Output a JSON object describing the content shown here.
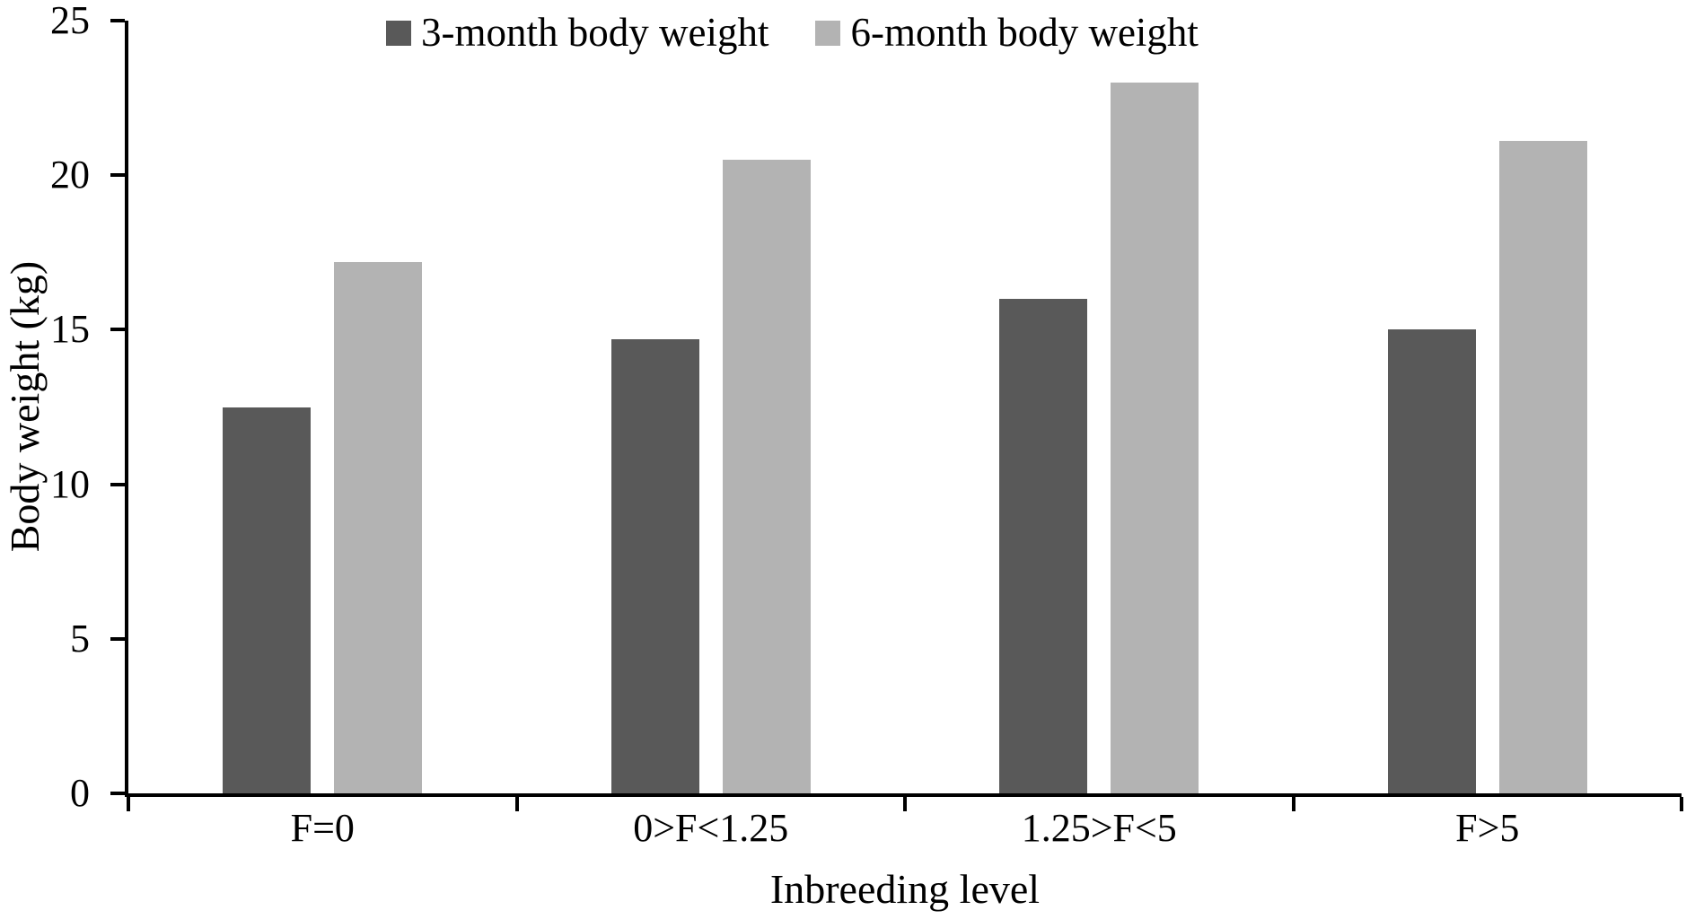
{
  "chart_data": {
    "type": "bar",
    "categories": [
      "F=0",
      "0>F<1.25",
      "1.25>F<5",
      "F>5"
    ],
    "series": [
      {
        "name": "3-month body weight",
        "color": "#595959",
        "values": [
          12.5,
          14.7,
          16.0,
          15.0
        ]
      },
      {
        "name": "6-month body weight",
        "color": "#b3b3b3",
        "values": [
          17.2,
          20.5,
          23.0,
          21.1
        ]
      }
    ],
    "xlabel": "Inbreeding level",
    "ylabel": "Body weight (kg)",
    "ylim": [
      0,
      25
    ],
    "yticks": [
      0,
      5,
      10,
      15,
      20,
      25
    ],
    "grid": false,
    "legend_position": "top-center",
    "axis_color": "#000000",
    "background_color": "#ffffff"
  }
}
